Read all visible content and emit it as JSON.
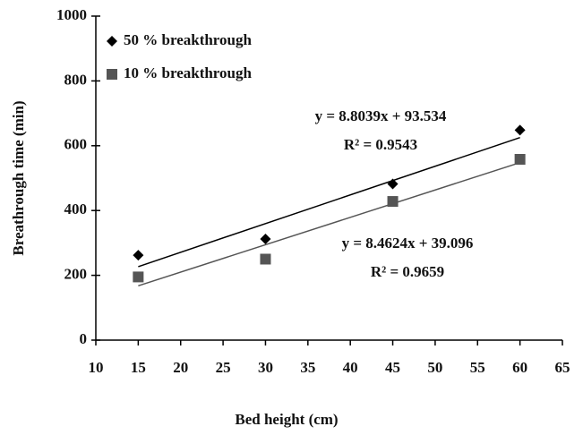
{
  "chart_data": {
    "type": "scatter",
    "x_label": "Bed height (cm)",
    "y_label": "Breathrough time (min)",
    "xlim": [
      10,
      65
    ],
    "xticks": [
      10,
      15,
      20,
      25,
      30,
      35,
      40,
      45,
      50,
      55,
      60,
      65
    ],
    "ylim": [
      0,
      1000
    ],
    "yticks": [
      0,
      200,
      400,
      600,
      800,
      1000
    ],
    "x": [
      15,
      30,
      45,
      60
    ],
    "series": [
      {
        "name": "50 % breakthrough",
        "color": "#000000",
        "marker": "diamond",
        "values": [
          262,
          312,
          482,
          648
        ]
      },
      {
        "name": "10 % breakthrough",
        "color": "#555555",
        "marker": "square",
        "values": [
          195,
          250,
          428,
          558
        ]
      }
    ],
    "trendline": true,
    "annotations": [
      "y = 8.8039x + 93.534",
      "R² = 0.9543",
      "y = 8.4624x + 39.096",
      "R² = 0.9659"
    ]
  }
}
